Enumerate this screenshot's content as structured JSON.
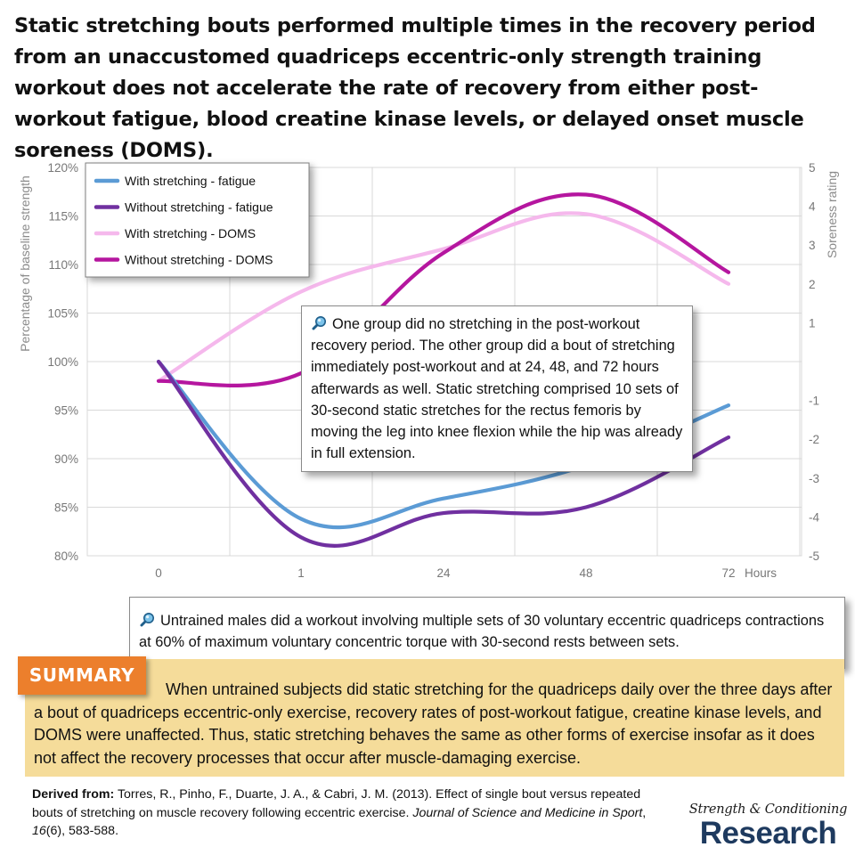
{
  "headline": "Static stretching bouts performed multiple times in the recovery period from an unaccustomed quadriceps eccentric-only strength training workout does not accelerate the rate of recovery from either post-workout fatigue, blood creatine kinase levels, or delayed onset muscle soreness (DOMS).",
  "chart_data": {
    "type": "line",
    "categories": [
      "0",
      "1",
      "24",
      "48",
      "72"
    ],
    "x_unit_label": "Hours",
    "y_left": {
      "label": "Percentage of baseline strength",
      "ylim": [
        80,
        120
      ],
      "ticks": [
        "80%",
        "85%",
        "90%",
        "95%",
        "100%",
        "105%",
        "110%",
        "115%",
        "120%"
      ]
    },
    "y_right": {
      "label": "Soreness rating",
      "ylim": [
        -5,
        5
      ],
      "ticks": [
        "-5",
        "-4",
        "-3",
        "-2",
        "-1",
        "1",
        "2",
        "3",
        "4",
        "5"
      ]
    },
    "grid": true,
    "legend_position": "top-left",
    "series": [
      {
        "name": "With stretching - fatigue",
        "axis": "left",
        "color": "#5b9bd5",
        "values": [
          100,
          83.8,
          85.9,
          89.3,
          95.5
        ]
      },
      {
        "name": "Without stretching - fatigue",
        "axis": "left",
        "color": "#7030a0",
        "values": [
          100,
          81.9,
          84.4,
          85.0,
          92.2
        ]
      },
      {
        "name": "With stretching - DOMS",
        "axis": "right",
        "color": "#f5b8ec",
        "values": [
          -0.5,
          1.8,
          2.9,
          3.8,
          2.0
        ]
      },
      {
        "name": "Without stretching - DOMS",
        "axis": "right",
        "color": "#b5169f",
        "values": [
          -0.5,
          -0.3,
          2.8,
          4.3,
          2.3
        ]
      }
    ]
  },
  "notes": {
    "design": "One group did no stretching in the post-workout recovery period. The other group did a bout of stretching immediately post-workout and at 24, 48, and 72 hours afterwards as well. Static stretching comprised 10 sets of 30-second static stretches for the rectus femoris by moving the leg into knee flexion while the hip was already in full extension.",
    "protocol": "Untrained males did a workout involving multiple sets of 30 voluntary eccentric quadriceps contractions at 60% of maximum voluntary concentric torque with 30-second rests between sets."
  },
  "summary": {
    "tag": "SUMMARY",
    "text": "When untrained subjects did static stretching for the quadriceps daily over the three days after a bout of quadriceps eccentric-only exercise, recovery rates of post-workout fatigue, creatine kinase levels, and DOMS were unaffected. Thus, static stretching behaves the same as other forms of exercise insofar as it does not affect the recovery processes that occur after muscle-damaging exercise."
  },
  "citation": {
    "label": "Derived from:",
    "authors": "Torres, R., Pinho, F., Duarte, J. A., & Cabri, J. M. (2013). Effect of single bout versus repeated bouts of stretching on muscle recovery following eccentric exercise.",
    "journal": "Journal of Science and Medicine in Sport",
    "volume": "16",
    "issue_pages": "(6), 583-588."
  },
  "logo": {
    "top": "Strength & Conditioning",
    "bottom": "Research"
  },
  "icons": {
    "note": "magnifier-pin-icon"
  },
  "colors": {
    "summary_tag": "#ec7f2c",
    "summary_panel": "#f5dc9a",
    "logo_text": "#1e3a5f"
  }
}
